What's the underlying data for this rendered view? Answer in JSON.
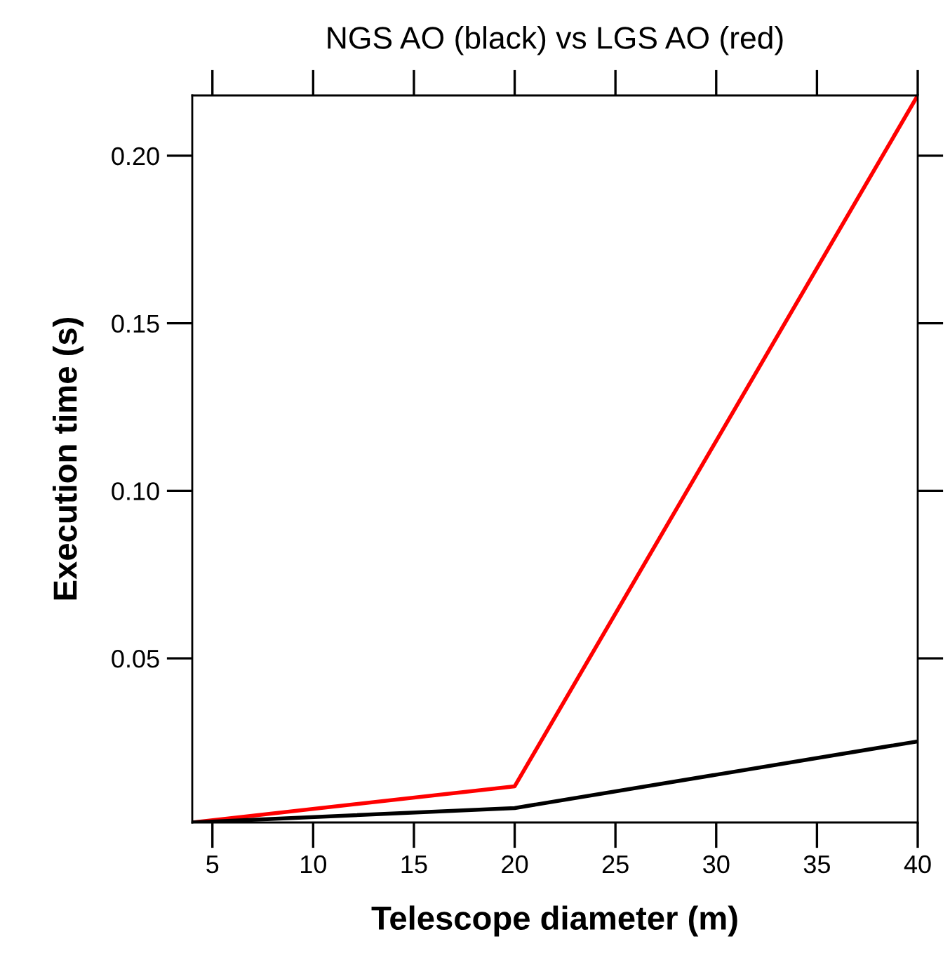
{
  "chart_data": {
    "type": "line",
    "title": "NGS AO (black) vs LGS AO (red)",
    "xlabel": "Telescope diameter (m)",
    "ylabel": "Execution time (s)",
    "xlim": [
      4,
      40
    ],
    "xticks": [
      5,
      10,
      15,
      20,
      25,
      30,
      35,
      40
    ],
    "ylim": [
      0.001,
      0.218
    ],
    "yticks": [
      0.05,
      {
        "value": 0.1,
        "label": "0.10"
      },
      0.15,
      {
        "value": 0.2,
        "label": "0.20"
      }
    ],
    "grid": false,
    "marker": "none",
    "line_style": "solid",
    "series": [
      {
        "color": "#ff0000",
        "x": [
          4,
          20,
          40
        ],
        "values": [
          0.001,
          0.0118,
          0.218
        ]
      },
      {
        "color": "#000000",
        "x": [
          4,
          20,
          40
        ],
        "values": [
          0.001,
          0.0053,
          0.0252
        ]
      }
    ]
  }
}
